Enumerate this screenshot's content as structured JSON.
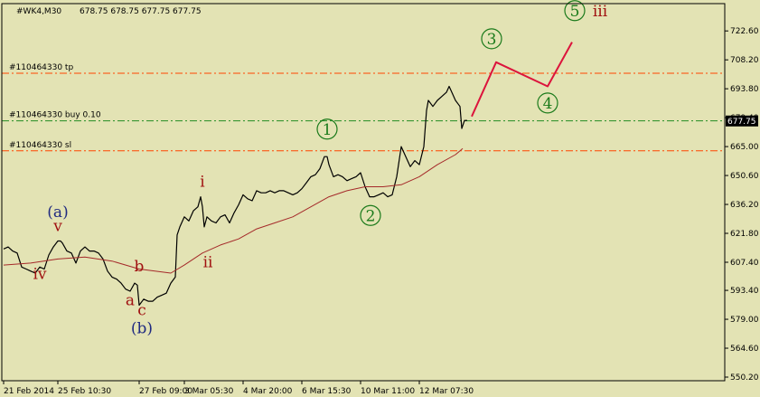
{
  "window": {
    "title": "#WK4,M30",
    "ohlc": "678.75 678.75 677.75 677.75"
  },
  "colors": {
    "background": "#e3e3b4",
    "price": "#000000",
    "ma": "#a52a2a",
    "tp_line": "#ff4500",
    "buy_line": "#228b22",
    "sl_line": "#ff4500",
    "forecast": "#dc143c",
    "wave_green": "#1a7a1a",
    "wave_red": "#a01010",
    "wave_blue": "#1f2a80",
    "price_tag_bg": "#000000",
    "price_tag_fg": "#ffffff"
  },
  "chart_data": {
    "type": "line",
    "title": "#WK4,M30",
    "ylim": [
      550.2,
      736.2
    ],
    "grid": false,
    "current_price": "677.75",
    "y_ticks": [
      "722.60",
      "708.20",
      "693.80",
      "679.40",
      "665.00",
      "650.60",
      "636.20",
      "621.80",
      "607.40",
      "593.40",
      "579.00",
      "564.60",
      "550.20"
    ],
    "x_ticks": [
      {
        "label": "21 Feb 2014",
        "t": 0
      },
      {
        "label": "25 Feb 10:30",
        "t": 60
      },
      {
        "label": "27 Feb 09:00",
        "t": 150
      },
      {
        "label": "3 Mar 05:30",
        "t": 200
      },
      {
        "label": "4 Mar 20:00",
        "t": 265
      },
      {
        "label": "6 Mar 15:30",
        "t": 330
      },
      {
        "label": "10 Mar 11:00",
        "t": 395
      },
      {
        "label": "12 Mar 07:30",
        "t": 460
      }
    ],
    "horizontal_lines": [
      {
        "label": "#110464330 tp",
        "value": 701.5,
        "style": "tp"
      },
      {
        "label": "#110464330 buy 0.10",
        "value": 677.8,
        "style": "buy"
      },
      {
        "label": "#110464330 sl",
        "value": 662.9,
        "style": "sl"
      }
    ],
    "series": [
      {
        "role": "price",
        "points": [
          [
            0,
            614
          ],
          [
            5,
            615
          ],
          [
            10,
            613
          ],
          [
            15,
            612
          ],
          [
            20,
            605
          ],
          [
            25,
            604
          ],
          [
            30,
            603
          ],
          [
            35,
            602
          ],
          [
            40,
            605
          ],
          [
            45,
            604
          ],
          [
            50,
            611
          ],
          [
            55,
            615
          ],
          [
            60,
            618
          ],
          [
            63,
            618
          ],
          [
            65,
            617
          ],
          [
            70,
            613
          ],
          [
            75,
            612
          ],
          [
            80,
            607
          ],
          [
            85,
            613
          ],
          [
            90,
            615
          ],
          [
            95,
            613
          ],
          [
            100,
            613
          ],
          [
            105,
            612
          ],
          [
            110,
            609
          ],
          [
            115,
            603
          ],
          [
            120,
            600
          ],
          [
            125,
            599
          ],
          [
            130,
            597
          ],
          [
            135,
            594
          ],
          [
            140,
            593
          ],
          [
            145,
            597
          ],
          [
            148,
            596
          ],
          [
            150,
            586
          ],
          [
            155,
            589
          ],
          [
            160,
            588
          ],
          [
            165,
            588
          ],
          [
            170,
            590
          ],
          [
            175,
            591
          ],
          [
            180,
            592
          ],
          [
            185,
            597
          ],
          [
            190,
            600
          ],
          [
            192,
            621
          ],
          [
            195,
            625
          ],
          [
            200,
            630
          ],
          [
            205,
            628
          ],
          [
            210,
            633
          ],
          [
            215,
            635
          ],
          [
            218,
            640
          ],
          [
            220,
            635
          ],
          [
            222,
            625
          ],
          [
            225,
            630
          ],
          [
            230,
            628
          ],
          [
            235,
            627
          ],
          [
            240,
            630
          ],
          [
            245,
            631
          ],
          [
            250,
            627
          ],
          [
            255,
            632
          ],
          [
            260,
            636
          ],
          [
            265,
            641
          ],
          [
            270,
            639
          ],
          [
            275,
            638
          ],
          [
            280,
            643
          ],
          [
            285,
            642
          ],
          [
            290,
            642
          ],
          [
            295,
            643
          ],
          [
            300,
            642
          ],
          [
            305,
            643
          ],
          [
            310,
            643
          ],
          [
            315,
            642
          ],
          [
            320,
            641
          ],
          [
            325,
            642
          ],
          [
            330,
            644
          ],
          [
            335,
            647
          ],
          [
            340,
            650
          ],
          [
            345,
            651
          ],
          [
            350,
            654
          ],
          [
            355,
            660
          ],
          [
            358,
            660
          ],
          [
            360,
            656
          ],
          [
            365,
            650
          ],
          [
            370,
            651
          ],
          [
            375,
            650
          ],
          [
            380,
            648
          ],
          [
            385,
            649
          ],
          [
            390,
            650
          ],
          [
            395,
            652
          ],
          [
            400,
            645
          ],
          [
            405,
            640
          ],
          [
            410,
            640
          ],
          [
            415,
            641
          ],
          [
            420,
            642
          ],
          [
            425,
            640
          ],
          [
            430,
            641
          ],
          [
            435,
            650
          ],
          [
            440,
            665
          ],
          [
            445,
            660
          ],
          [
            450,
            655
          ],
          [
            455,
            658
          ],
          [
            460,
            656
          ],
          [
            465,
            665
          ],
          [
            468,
            683
          ],
          [
            470,
            688
          ],
          [
            475,
            685
          ],
          [
            480,
            688
          ],
          [
            485,
            690
          ],
          [
            490,
            692
          ],
          [
            493,
            695
          ],
          [
            495,
            693
          ],
          [
            500,
            688
          ],
          [
            505,
            685
          ],
          [
            507,
            674
          ],
          [
            510,
            678
          ],
          [
            513,
            678
          ]
        ]
      },
      {
        "role": "moving_average",
        "points": [
          [
            0,
            606
          ],
          [
            30,
            607
          ],
          [
            60,
            609
          ],
          [
            90,
            610
          ],
          [
            120,
            608
          ],
          [
            150,
            604
          ],
          [
            185,
            602
          ],
          [
            200,
            606
          ],
          [
            220,
            612
          ],
          [
            240,
            616
          ],
          [
            260,
            619
          ],
          [
            280,
            624
          ],
          [
            300,
            627
          ],
          [
            320,
            630
          ],
          [
            340,
            635
          ],
          [
            360,
            640
          ],
          [
            380,
            643
          ],
          [
            400,
            645
          ],
          [
            420,
            645
          ],
          [
            440,
            646
          ],
          [
            460,
            650
          ],
          [
            480,
            656
          ],
          [
            500,
            661
          ],
          [
            508,
            664
          ]
        ]
      },
      {
        "role": "forecast",
        "points": [
          [
            518,
            680
          ],
          [
            545,
            707
          ],
          [
            602,
            695
          ],
          [
            629,
            717
          ]
        ]
      }
    ],
    "wave_labels": [
      {
        "text": "(a)",
        "t": 60,
        "price": 630,
        "color": "blue"
      },
      {
        "text": "v",
        "t": 60,
        "price": 623,
        "color": "red"
      },
      {
        "text": "iv",
        "t": 40,
        "price": 599,
        "color": "red"
      },
      {
        "text": "b",
        "t": 150,
        "price": 603,
        "color": "red"
      },
      {
        "text": "a",
        "t": 140,
        "price": 586,
        "color": "red"
      },
      {
        "text": "c",
        "t": 153,
        "price": 581,
        "color": "red"
      },
      {
        "text": "(b)",
        "t": 153,
        "price": 572,
        "color": "blue"
      },
      {
        "text": "i",
        "t": 220,
        "price": 645,
        "color": "red"
      },
      {
        "text": "ii",
        "t": 226,
        "price": 605,
        "color": "red"
      },
      {
        "text": "1",
        "t": 358,
        "price": 671,
        "color": "green",
        "circled": true
      },
      {
        "text": "2",
        "t": 406,
        "price": 628,
        "color": "green",
        "circled": true
      },
      {
        "text": "3",
        "t": 540,
        "price": 716,
        "color": "green",
        "circled": true
      },
      {
        "text": "4",
        "t": 602,
        "price": 684,
        "color": "green",
        "circled": true
      },
      {
        "text": "5",
        "t": 632,
        "price": 730,
        "color": "green",
        "circled": true
      },
      {
        "text": "iii",
        "t": 660,
        "price": 730,
        "color": "red"
      }
    ]
  }
}
